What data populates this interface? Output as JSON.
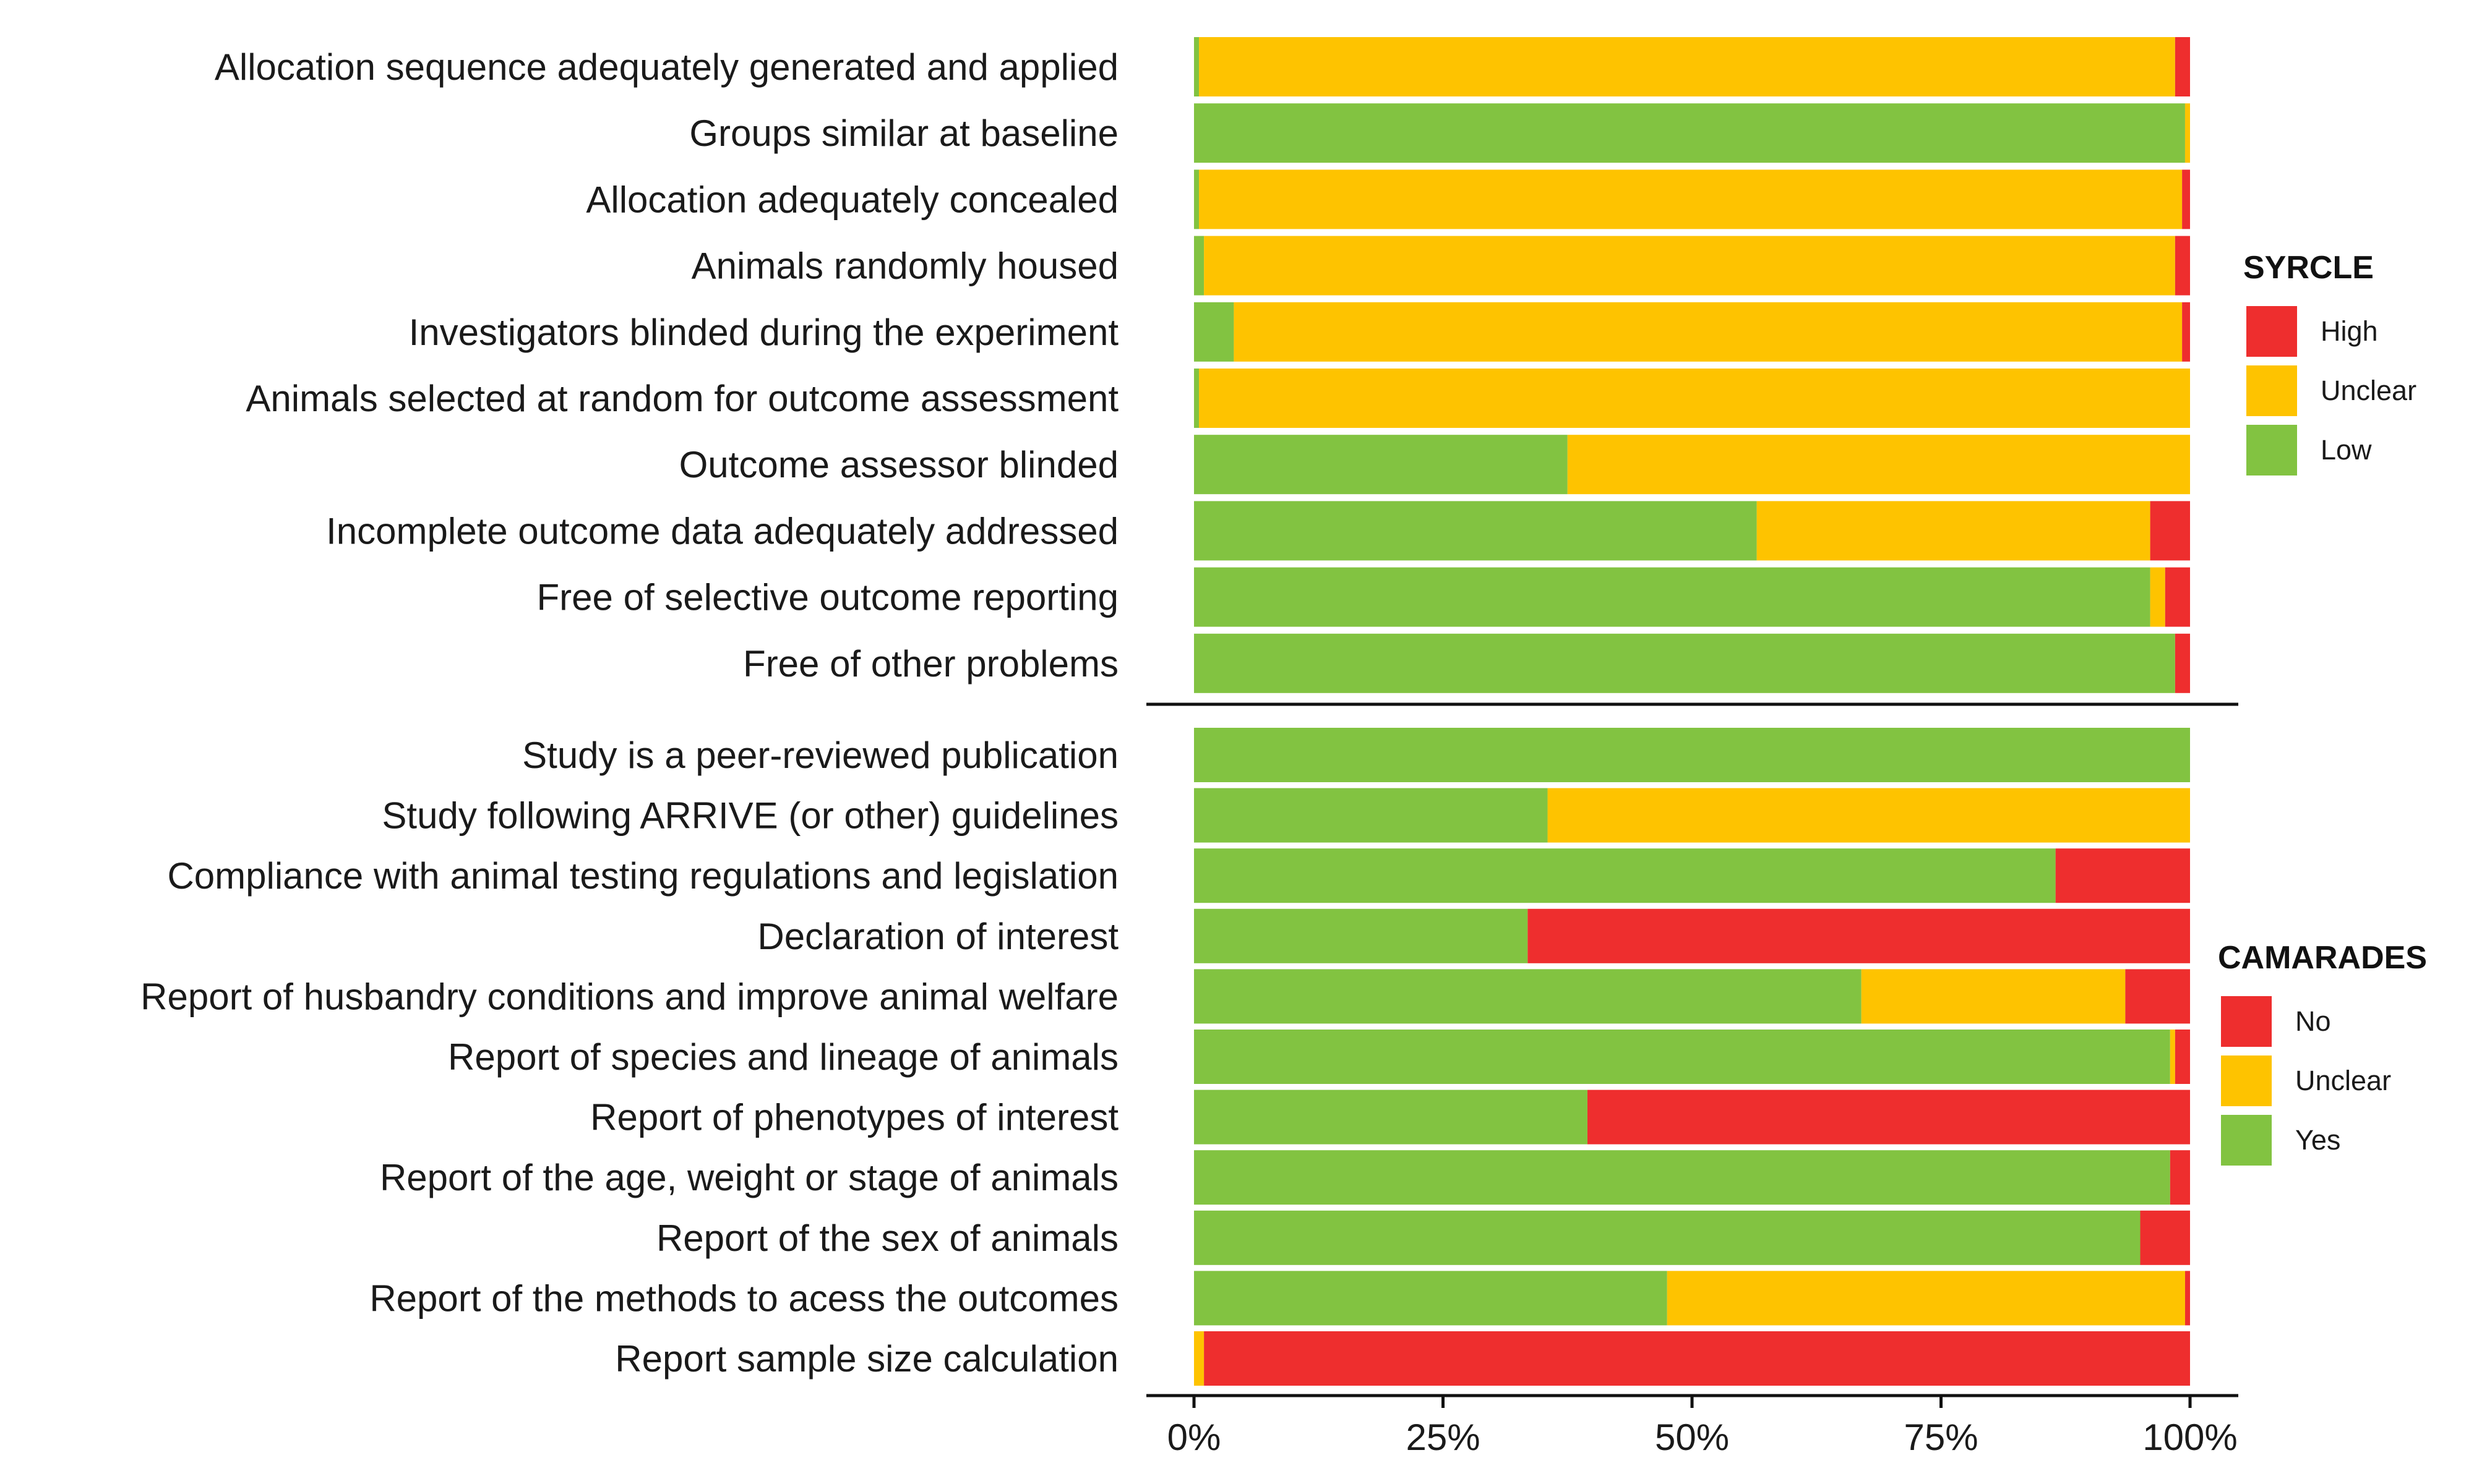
{
  "chart_data": {
    "type": "bar",
    "orientation": "horizontal",
    "stacked": true,
    "x_axis": {
      "ticks": [
        0,
        25,
        50,
        75,
        100
      ],
      "tick_labels": [
        "0%",
        "25%",
        "50%",
        "75%",
        "100%"
      ],
      "xlim": [
        0,
        100
      ]
    },
    "grid": false,
    "colors": {
      "red": "#EE2E2E",
      "yellow": "#FEC300",
      "green": "#82C341"
    },
    "panels": [
      {
        "name": "SYRCLE",
        "legend": {
          "title": "SYRCLE",
          "position": "right",
          "entries": [
            {
              "label": "High",
              "color": "#EE2E2E"
            },
            {
              "label": "Unclear",
              "color": "#FEC300"
            },
            {
              "label": "Low",
              "color": "#82C341"
            }
          ]
        },
        "categories": [
          {
            "label": "Allocation sequence adequately generated and applied",
            "values": [
              0.5,
              98.0,
              1.5
            ]
          },
          {
            "label": "Groups similar at baseline",
            "values": [
              99.5,
              0.5,
              0
            ]
          },
          {
            "label": "Allocation adequately concealed",
            "values": [
              0.5,
              98.7,
              0.8
            ]
          },
          {
            "label": "Animals randomly housed",
            "values": [
              1.0,
              97.5,
              1.5
            ]
          },
          {
            "label": "Investigators blinded during the experiment",
            "values": [
              4.0,
              95.2,
              0.8
            ]
          },
          {
            "label": "Animals selected at random for outcome assessment",
            "values": [
              0.5,
              99.5,
              0
            ]
          },
          {
            "label": "Outcome assessor blinded",
            "values": [
              37.5,
              62.5,
              0
            ]
          },
          {
            "label": "Incomplete outcome data adequately addressed",
            "values": [
              56.5,
              39.5,
              4.0
            ]
          },
          {
            "label": "Free of selective outcome reporting",
            "values": [
              96.0,
              1.5,
              2.5
            ]
          },
          {
            "label": "Free of other problems",
            "values": [
              98.5,
              0,
              1.5
            ]
          }
        ]
      },
      {
        "name": "CAMARADES",
        "legend": {
          "title": "CAMARADES",
          "position": "right",
          "entries": [
            {
              "label": "No",
              "color": "#EE2E2E"
            },
            {
              "label": "Unclear",
              "color": "#FEC300"
            },
            {
              "label": "Yes",
              "color": "#82C341"
            }
          ]
        },
        "categories": [
          {
            "label": "Study is a peer-reviewed publication",
            "values": [
              100,
              0,
              0
            ]
          },
          {
            "label": "Study following ARRIVE (or other) guidelines",
            "values": [
              35.5,
              64.5,
              0
            ]
          },
          {
            "label": "Compliance with animal testing regulations and legislation",
            "values": [
              86.5,
              0,
              13.5
            ]
          },
          {
            "label": "Declaration of interest",
            "values": [
              33.5,
              0,
              66.5
            ]
          },
          {
            "label": "Report of husbandry conditions and improve animal welfare",
            "values": [
              67.0,
              26.5,
              6.5
            ]
          },
          {
            "label": "Report of species and lineage of animals",
            "values": [
              98.0,
              0.5,
              1.5
            ]
          },
          {
            "label": "Report of phenotypes of interest",
            "values": [
              39.5,
              0,
              60.5
            ]
          },
          {
            "label": "Report of the age, weight or stage of animals",
            "values": [
              98.0,
              0,
              2.0
            ]
          },
          {
            "label": "Report of the sex of animals",
            "values": [
              95.0,
              0,
              5.0
            ]
          },
          {
            "label": "Report of the methods to acess the outcomes",
            "values": [
              47.5,
              52.0,
              0.5
            ]
          },
          {
            "label": "Report sample size calculation",
            "values": [
              0,
              1.0,
              99.0
            ]
          }
        ]
      }
    ]
  }
}
